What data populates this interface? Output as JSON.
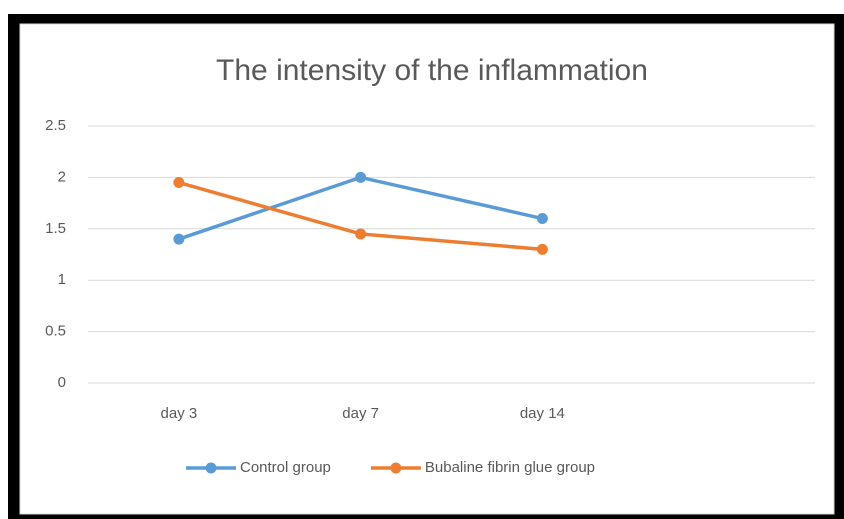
{
  "chart_data": {
    "type": "line",
    "title": "The intensity of the inflammation",
    "categories": [
      "day 3",
      "day 7",
      "day 14",
      null
    ],
    "series": [
      {
        "name": "Control group",
        "color": "#5b9bd5",
        "values": [
          1.4,
          2,
          1.6,
          null
        ]
      },
      {
        "name": "Bubaline fibrin glue group",
        "color": "#ed7d31",
        "values": [
          1.95,
          1.45,
          1.3,
          null
        ]
      }
    ],
    "ylim": [
      0,
      2.5
    ],
    "yticks": [
      0,
      0.5,
      1,
      1.5,
      2,
      2.5
    ],
    "grid": true,
    "legend": "bottom"
  }
}
